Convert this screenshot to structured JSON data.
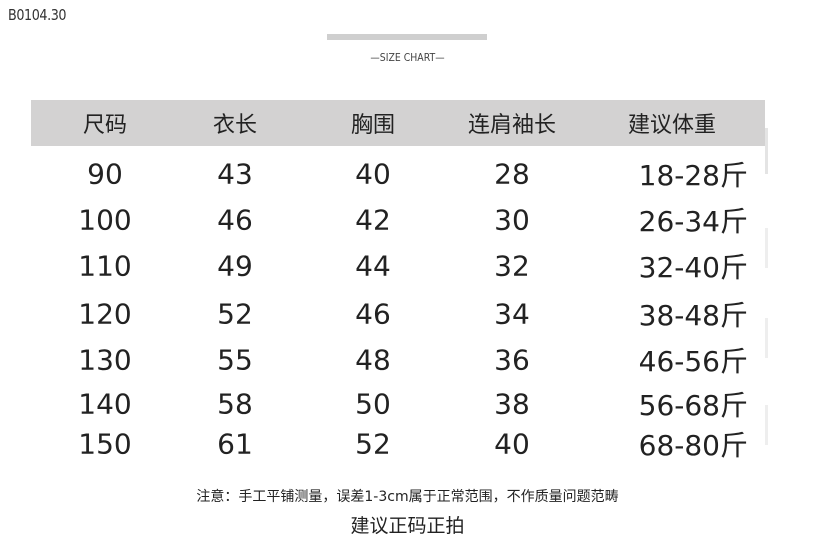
{
  "code": "B0104.30",
  "title": "—SIZE CHART—",
  "table": {
    "headers": [
      "尺码",
      "衣长",
      "胸围",
      "连肩袖长",
      "建议体重"
    ],
    "rows": [
      [
        "90",
        "43",
        "40",
        "28",
        "18-28斤"
      ],
      [
        "100",
        "46",
        "42",
        "30",
        "26-34斤"
      ],
      [
        "110",
        "49",
        "44",
        "32",
        "32-40斤"
      ],
      [
        "120",
        "52",
        "46",
        "34",
        "38-48斤"
      ],
      [
        "130",
        "55",
        "48",
        "36",
        "46-56斤"
      ],
      [
        "140",
        "58",
        "50",
        "38",
        "56-68斤"
      ],
      [
        "150",
        "61",
        "52",
        "40",
        "68-80斤"
      ]
    ]
  },
  "note": "注意：手工平铺测量，误差1-3cm属于正常范围，不作质量问题范畴",
  "advice": "建议正码正拍",
  "colors": {
    "header_bg": "#d3d2d2"
  }
}
